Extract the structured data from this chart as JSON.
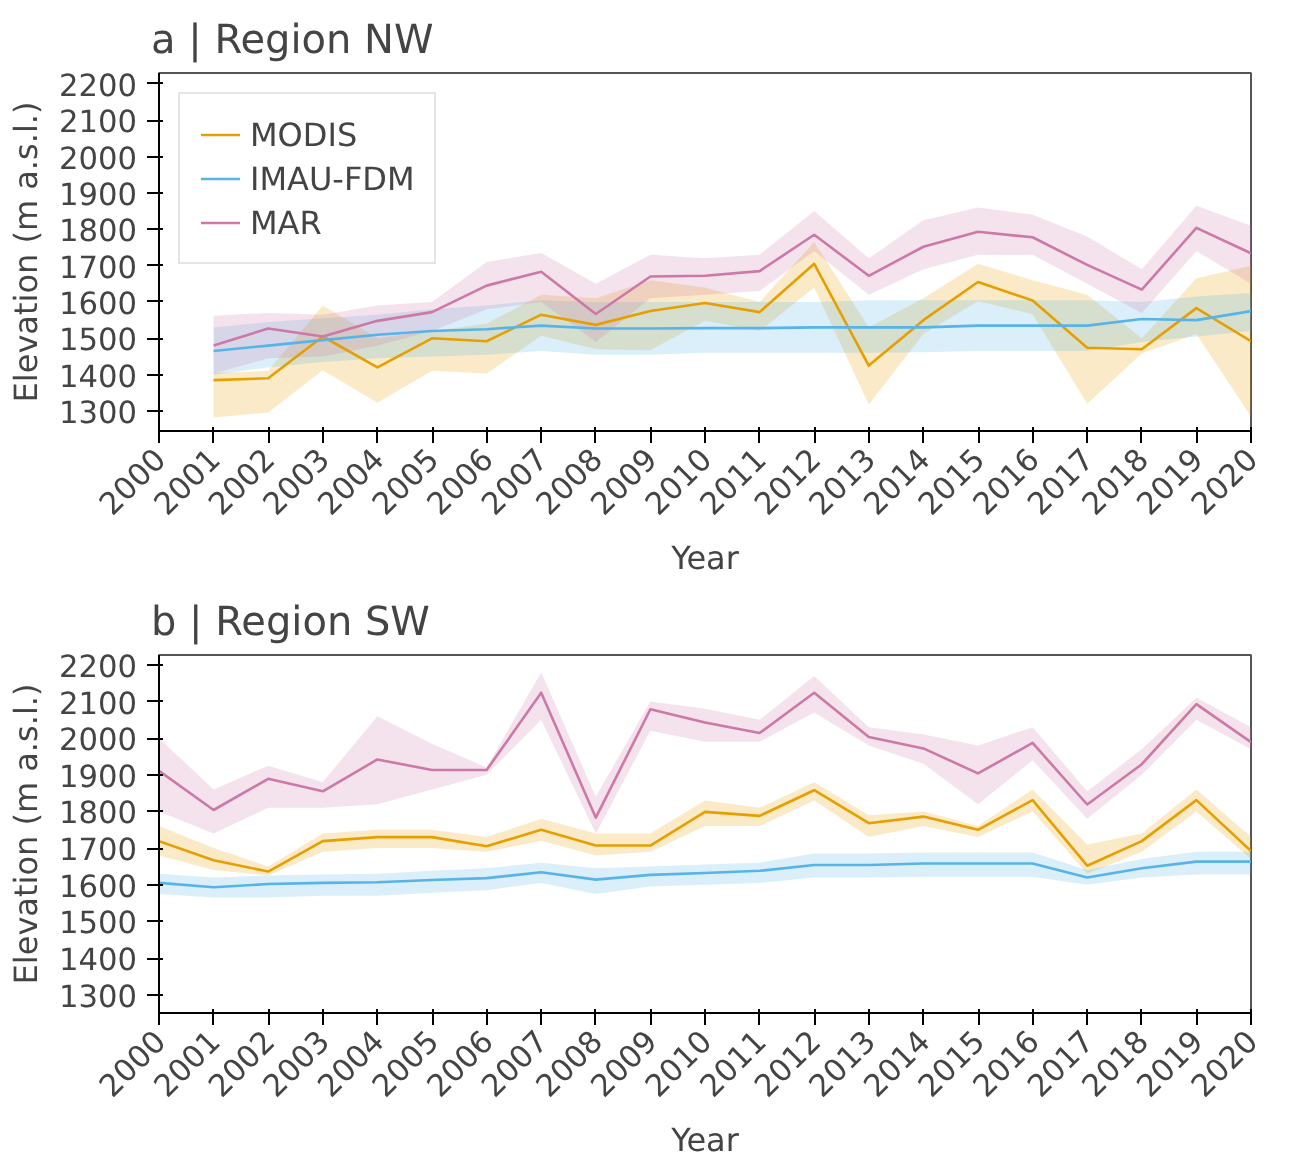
{
  "chart_data": [
    {
      "type": "line",
      "title": "a | Region NW",
      "xlabel": "Year",
      "ylabel": "Elevation (m a.s.l.)",
      "legend": "top left",
      "grid": false,
      "xlim": [
        2000,
        2020
      ],
      "xticks": [
        2000,
        2001,
        2002,
        2003,
        2004,
        2005,
        2006,
        2007,
        2008,
        2009,
        2010,
        2011,
        2012,
        2013,
        2014,
        2015,
        2016,
        2017,
        2018,
        2019,
        2020
      ],
      "ylim": [
        1245,
        2230
      ],
      "yticks": [
        1300,
        1400,
        1500,
        1600,
        1700,
        1800,
        1900,
        2000,
        2100,
        2200
      ],
      "x": [
        2001,
        2002,
        2003,
        2004,
        2005,
        2006,
        2007,
        2008,
        2009,
        2010,
        2011,
        2012,
        2013,
        2014,
        2015,
        2016,
        2017,
        2018,
        2019,
        2020
      ],
      "series": [
        {
          "name": "MODIS",
          "color": "#e69f00",
          "values": [
            1385,
            1390,
            1505,
            1420,
            1500,
            1492,
            1565,
            1537,
            1575,
            1597,
            1572,
            1705,
            1425,
            1550,
            1655,
            1604,
            1474,
            1470,
            1583,
            1492
          ],
          "lower": [
            1282,
            1296,
            1412,
            1323,
            1411,
            1403,
            1507,
            1470,
            1467,
            1548,
            1520,
            1640,
            1318,
            1512,
            1602,
            1566,
            1320,
            1458,
            1512,
            1285
          ],
          "upper": [
            1405,
            1410,
            1590,
            1500,
            1520,
            1540,
            1620,
            1610,
            1660,
            1640,
            1600,
            1765,
            1530,
            1610,
            1705,
            1660,
            1620,
            1500,
            1665,
            1700
          ]
        },
        {
          "name": "IMAU-FDM",
          "color": "#56b4e9",
          "values": [
            1465,
            1480,
            1495,
            1510,
            1520,
            1525,
            1535,
            1527,
            1527,
            1528,
            1528,
            1530,
            1530,
            1530,
            1535,
            1535,
            1535,
            1553,
            1550,
            1575
          ],
          "lower": [
            1400,
            1420,
            1435,
            1445,
            1450,
            1455,
            1465,
            1455,
            1455,
            1460,
            1460,
            1460,
            1460,
            1462,
            1465,
            1465,
            1465,
            1490,
            1505,
            1520
          ],
          "upper": [
            1530,
            1545,
            1555,
            1565,
            1580,
            1590,
            1605,
            1600,
            1600,
            1600,
            1600,
            1600,
            1605,
            1605,
            1605,
            1605,
            1605,
            1600,
            1615,
            1625
          ]
        },
        {
          "name": "MAR",
          "color": "#cc79a7",
          "values": [
            1480,
            1527,
            1505,
            1548,
            1572,
            1645,
            1683,
            1567,
            1670,
            1672,
            1685,
            1785,
            1672,
            1752,
            1793,
            1778,
            1702,
            1634,
            1804,
            1734
          ],
          "lower": [
            1403,
            1445,
            1450,
            1480,
            1520,
            1580,
            1600,
            1490,
            1610,
            1620,
            1630,
            1740,
            1620,
            1690,
            1730,
            1730,
            1650,
            1570,
            1740,
            1650
          ],
          "upper": [
            1562,
            1570,
            1565,
            1590,
            1600,
            1710,
            1735,
            1650,
            1730,
            1720,
            1730,
            1850,
            1720,
            1825,
            1860,
            1840,
            1780,
            1690,
            1865,
            1810
          ]
        }
      ]
    },
    {
      "type": "line",
      "title": "b | Region SW",
      "xlabel": "Year",
      "ylabel": "Elevation (m a.s.l.)",
      "grid": false,
      "xlim": [
        2000,
        2020
      ],
      "xticks": [
        2000,
        2001,
        2002,
        2003,
        2004,
        2005,
        2006,
        2007,
        2008,
        2009,
        2010,
        2011,
        2012,
        2013,
        2014,
        2015,
        2016,
        2017,
        2018,
        2019,
        2020
      ],
      "ylim": [
        1250,
        2227
      ],
      "yticks": [
        1300,
        1400,
        1500,
        1600,
        1700,
        1800,
        1900,
        2000,
        2100,
        2200
      ],
      "x": [
        2000,
        2001,
        2002,
        2003,
        2004,
        2005,
        2006,
        2007,
        2008,
        2009,
        2010,
        2011,
        2012,
        2013,
        2014,
        2015,
        2016,
        2017,
        2018,
        2019,
        2020
      ],
      "series": [
        {
          "color": "#e69f00",
          "values": [
            1719,
            1667,
            1636,
            1719,
            1730,
            1730,
            1705,
            1750,
            1707,
            1707,
            1799,
            1788,
            1858,
            1768,
            1786,
            1750,
            1831,
            1652,
            1719,
            1831,
            1692
          ],
          "lower": [
            1680,
            1640,
            1625,
            1690,
            1700,
            1700,
            1690,
            1720,
            1680,
            1690,
            1760,
            1760,
            1830,
            1730,
            1760,
            1730,
            1800,
            1630,
            1690,
            1800,
            1670
          ],
          "upper": [
            1760,
            1700,
            1650,
            1740,
            1750,
            1750,
            1730,
            1780,
            1740,
            1740,
            1830,
            1810,
            1880,
            1790,
            1800,
            1760,
            1860,
            1710,
            1740,
            1860,
            1730
          ]
        },
        {
          "color": "#56b4e9",
          "values": [
            1605,
            1593,
            1602,
            1605,
            1607,
            1613,
            1618,
            1634,
            1614,
            1627,
            1632,
            1638,
            1654,
            1654,
            1658,
            1658,
            1658,
            1620,
            1645,
            1663,
            1663
          ],
          "lower": [
            1575,
            1565,
            1565,
            1570,
            1570,
            1578,
            1585,
            1605,
            1575,
            1595,
            1600,
            1605,
            1620,
            1620,
            1622,
            1622,
            1622,
            1600,
            1620,
            1628,
            1628
          ],
          "upper": [
            1630,
            1620,
            1625,
            1628,
            1630,
            1638,
            1645,
            1660,
            1645,
            1650,
            1655,
            1660,
            1685,
            1685,
            1688,
            1688,
            1688,
            1640,
            1670,
            1690,
            1690
          ]
        },
        {
          "color": "#cc79a7",
          "values": [
            1911,
            1804,
            1889,
            1855,
            1942,
            1913,
            1913,
            2124,
            1783,
            2079,
            2043,
            2014,
            2124,
            2003,
            1972,
            1904,
            1987,
            1819,
            1929,
            2093,
            1989
          ],
          "lower": [
            1800,
            1740,
            1810,
            1810,
            1820,
            1860,
            1900,
            2050,
            1740,
            2020,
            1990,
            1990,
            2070,
            1980,
            1930,
            1820,
            1940,
            1780,
            1900,
            2050,
            1970
          ],
          "upper": [
            2000,
            1860,
            1925,
            1880,
            2060,
            1985,
            1920,
            2180,
            1840,
            2100,
            2080,
            2050,
            2170,
            2030,
            2010,
            1980,
            2030,
            1855,
            1970,
            2110,
            2030
          ]
        }
      ]
    }
  ]
}
